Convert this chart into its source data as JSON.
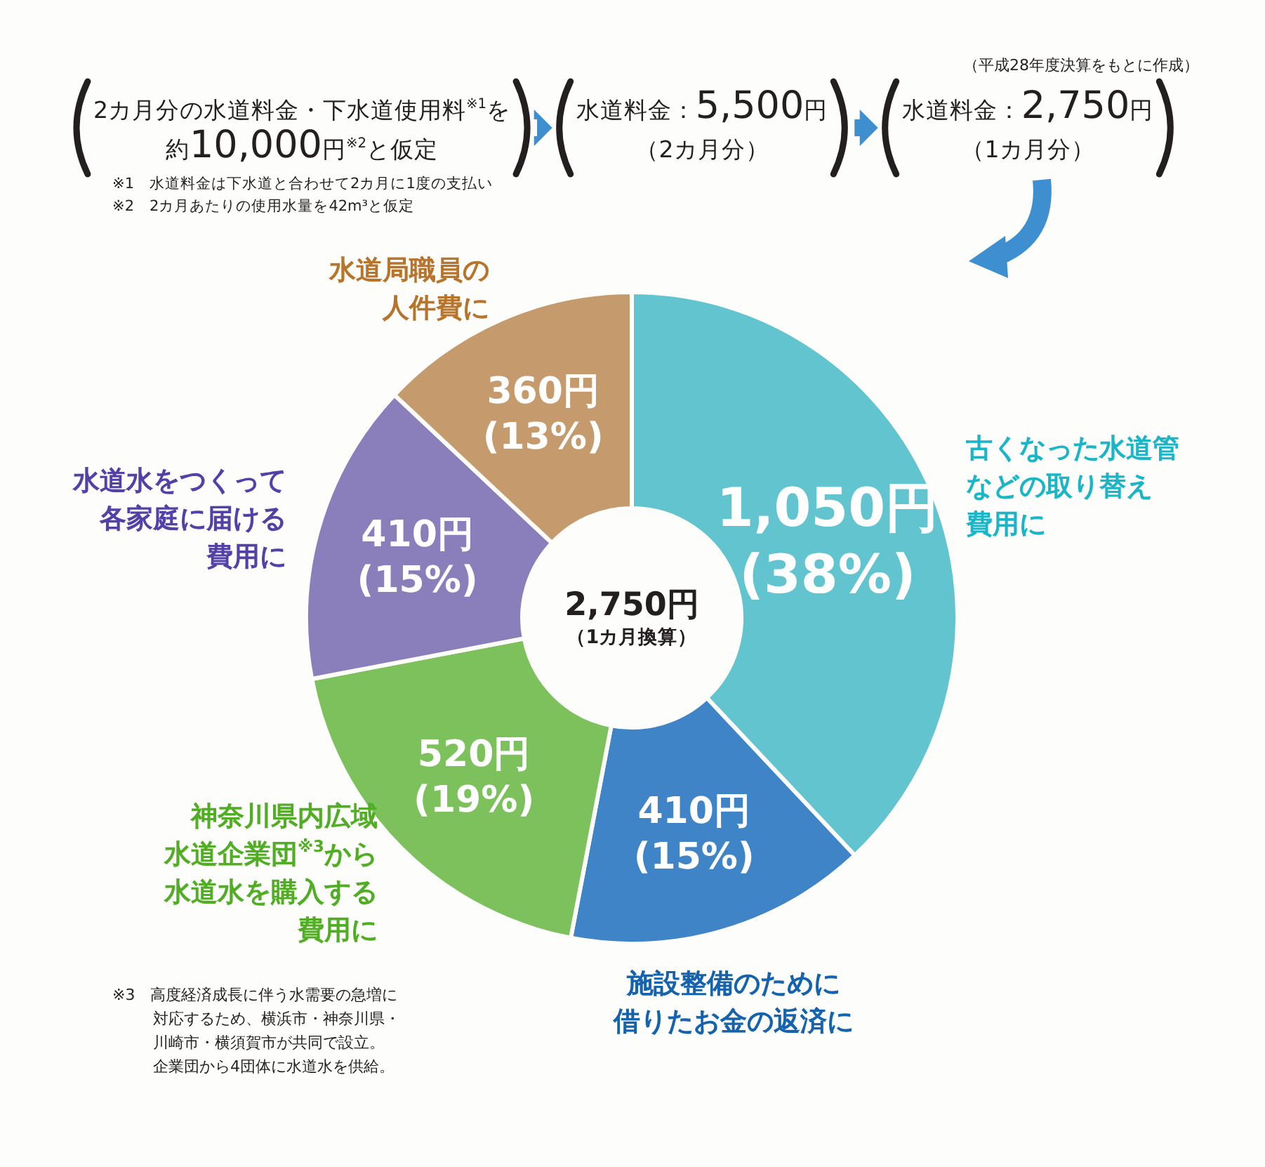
{
  "chart_data": {
    "type": "donut",
    "categories": [
      "古くなった水道管などの取り替え費用に",
      "施設整備のために借りたお金の返済に",
      "神奈川県内広域水道企業団$^{※3}$から水道水を購入する費用に",
      "水道水をつくって各家庭に届ける費用に",
      "水道局職員の人件費に"
    ],
    "values": [
      38,
      15,
      19,
      15,
      13
    ],
    "colors": [
      "#62c4cf",
      "#3f84c6",
      "#7cc15b",
      "#8a7fbb",
      "#c59b6e"
    ],
    "value_labels": [
      "1,050円\n(38%)",
      "410円\n(15%)",
      "520円\n(19%)",
      "410円\n(15%)",
      "360円\n(13%)"
    ],
    "annotations": [
      "2カ月分の水道料金・下水道使用料$^{※1}$を約10,000円$^{※2}$と仮定",
      "水道料金：5,500円（2カ月分）",
      "水道料金：2,750円（1カ月分）",
      "（平成28年度決算をもとに作成）",
      "※1　水道料金は下水道と合わせて2カ月に1度の支払い",
      "※2　2カ月あたりの使用水量を42m³と仮定",
      "※3　高度経済成長に伴う水需要の急増に対応するため、横浜市・神奈川県・川崎市・横須賀市が共同で設立。企業団から4団体に水道水を供給。",
      "2,750円（1カ月換算）"
    ]
  }
}
